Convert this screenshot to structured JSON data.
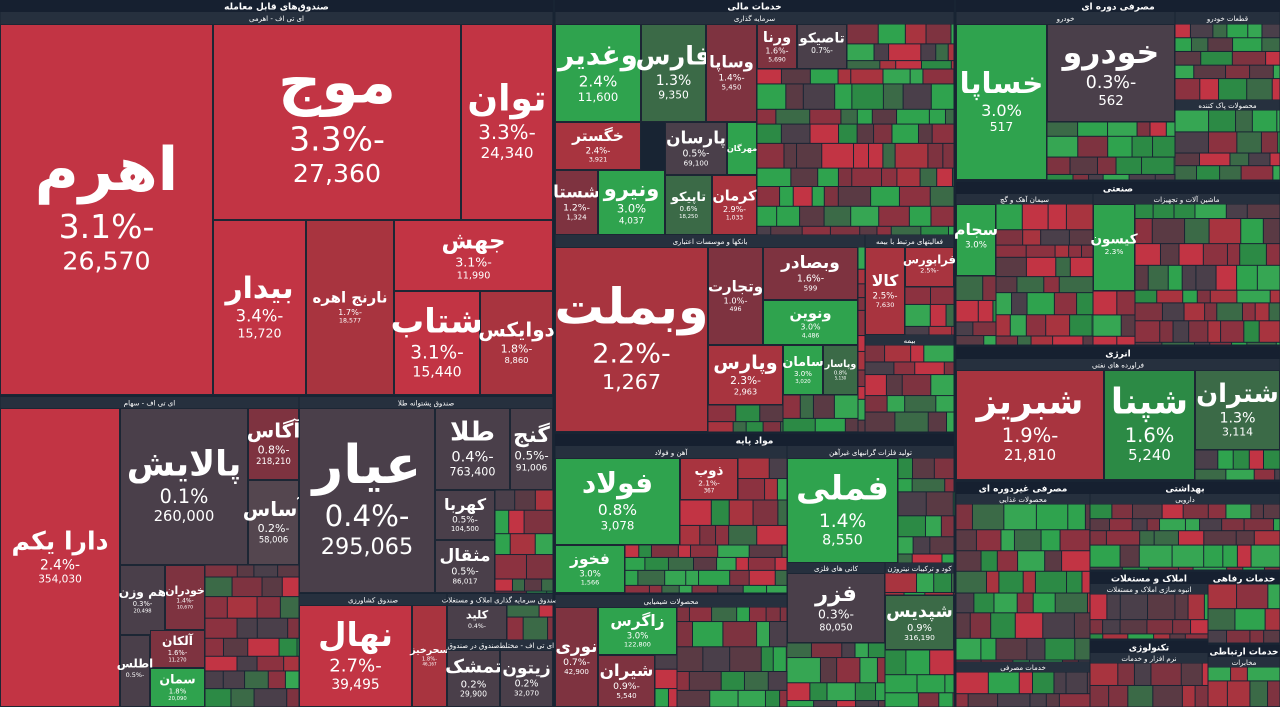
{
  "sections": [
    {
      "title": "صندوق‌های قابل معامله",
      "groups": [
        {
          "title": "ای تی اف - اهرمی",
          "tiles": [
            {
              "name": "اهرم",
              "change": "-3.1%",
              "value": "26,570"
            },
            {
              "name": "موج",
              "change": "-3.3%",
              "value": "27,360"
            },
            {
              "name": "توان",
              "change": "-3.3%",
              "value": "24,340"
            },
            {
              "name": "بیدار",
              "change": "-3.4%",
              "value": "15,720"
            },
            {
              "name": "نارنج اهره",
              "change": "-1.7%",
              "value": "18,577"
            },
            {
              "name": "جهش",
              "change": "-3.1%",
              "value": "11,990"
            },
            {
              "name": "شتاب",
              "change": "-3.1%",
              "value": "15,440"
            },
            {
              "name": "دوایکس",
              "change": "-1.8%",
              "value": "8,860"
            }
          ]
        },
        {
          "title": "ای تی اف - سهام",
          "tiles": [
            {
              "name": "دارا یکم",
              "change": "-2.4%",
              "value": "354,030"
            },
            {
              "name": "پالایش",
              "change": "0.1%",
              "value": "260,000"
            },
            {
              "name": "آگاس",
              "change": "-0.8%",
              "value": "218,210"
            },
            {
              "name": "آساس",
              "change": "-0.2%",
              "value": "58,006"
            },
            {
              "name": "هم وزن",
              "change": "-0.3%",
              "value": "20,498"
            },
            {
              "name": "خودران",
              "change": "-1.4%",
              "value": "10,670"
            },
            {
              "name": "آلکان",
              "change": "-1.6%",
              "value": "11,270"
            },
            {
              "name": "اطلس",
              "change": "-0.5%"
            },
            {
              "name": "سمان",
              "change": "1.8%",
              "value": "20,090"
            }
          ]
        },
        {
          "title": "صندوق پشتوانه طلا",
          "tiles": [
            {
              "name": "عیار",
              "change": "-0.4%",
              "value": "295,065"
            },
            {
              "name": "طلا",
              "change": "-0.4%",
              "value": "763,400"
            },
            {
              "name": "گنج",
              "change": "-0.5%",
              "value": "91,006"
            },
            {
              "name": "کهربا",
              "change": "-0.5%",
              "value": "104,500"
            },
            {
              "name": "مثقال",
              "change": "-0.5%",
              "value": "86,017"
            }
          ]
        },
        {
          "title": "صندوق کشاورزی",
          "tiles": [
            {
              "name": "نهال",
              "change": "-2.7%",
              "value": "39,495"
            },
            {
              "name": "سحرخیز",
              "change": "-1.8%",
              "value": "46,167"
            }
          ]
        },
        {
          "title": "صندوق سرمایه گذاری املاک و مستغلات",
          "tiles": [
            {
              "name": "کلید",
              "change": "-0.4%"
            }
          ]
        },
        {
          "title": "صندوق در صندوق",
          "tiles": [
            {
              "name": "تمشک",
              "change": "0.2%",
              "value": "29,900"
            }
          ]
        },
        {
          "title": "ای تی اف - مختلط",
          "tiles": [
            {
              "name": "زیتون",
              "change": "0.2%",
              "value": "32,070"
            }
          ]
        }
      ]
    },
    {
      "title": "خدمات مالی",
      "groups": [
        {
          "title": "سرمایه گذاری",
          "tiles": [
            {
              "name": "وغدیر",
              "change": "2.4%",
              "value": "11,600"
            },
            {
              "name": "فارس",
              "change": "1.3%",
              "value": "9,350"
            },
            {
              "name": "وساپا",
              "change": "-1.4%",
              "value": "5,450"
            },
            {
              "name": "خگستر",
              "change": "-2.4%",
              "value": "3,921"
            },
            {
              "name": "شستا",
              "change": "-1.2%",
              "value": "1,324"
            },
            {
              "name": "ونیرو",
              "change": "3.0%",
              "value": "4,037"
            },
            {
              "name": "پارسان",
              "change": "-0.5%",
              "value": "69,100"
            },
            {
              "name": "تاپیکو",
              "change": "0.6%",
              "value": "18,250"
            },
            {
              "name": "مهرگان",
              "change": "3.0%"
            },
            {
              "name": "کرمان",
              "change": "-2.9%",
              "value": "1,033"
            },
            {
              "name": "ورنا",
              "change": "-1.6%",
              "value": "5,690"
            },
            {
              "name": "تاصیکو",
              "change": "-0.7%"
            }
          ]
        },
        {
          "title": "بانکها و موسسات اعتباری",
          "tiles": [
            {
              "name": "وبملت",
              "change": "-2.2%",
              "value": "1,267"
            },
            {
              "name": "وتجارت",
              "change": "-1.0%",
              "value": "496"
            },
            {
              "name": "وبصادر",
              "change": "-1.6%",
              "value": "599"
            },
            {
              "name": "ونوین",
              "change": "3.0%",
              "value": "4,486"
            },
            {
              "name": "وپارس",
              "change": "-2.3%",
              "value": "2,963"
            },
            {
              "name": "سامان",
              "change": "3.0%",
              "value": "3,020"
            },
            {
              "name": "وپاسار",
              "change": "0.8%",
              "value": "5,130"
            }
          ]
        },
        {
          "title": "فعالیتهای مرتبط با بیمه",
          "tiles": [
            {
              "name": "کالا",
              "change": "-2.5%",
              "value": "7,630"
            },
            {
              "name": "فرابورس",
              "change": "-2.5%"
            }
          ]
        },
        {
          "title": "بیمه",
          "tiles": []
        }
      ]
    },
    {
      "title": "مصرفی دوره ای",
      "groups": [
        {
          "title": "خودرو",
          "tiles": [
            {
              "name": "خساپا",
              "change": "3.0%",
              "value": "517"
            },
            {
              "name": "خودرو",
              "change": "-0.3%",
              "value": "562"
            }
          ]
        },
        {
          "title": "قطعات خودرو",
          "tiles": []
        },
        {
          "title": "محصولات پاک کننده",
          "tiles": []
        }
      ]
    },
    {
      "title": "صنعتی",
      "groups": [
        {
          "title": "سیمان آهک و گچ",
          "tiles": [
            {
              "name": "سجام",
              "change": "3.0%"
            }
          ]
        },
        {
          "title": "ماشین آلات و تجهیزات",
          "tiles": [
            {
              "name": "کیسون",
              "change": "2.3%"
            }
          ]
        }
      ]
    },
    {
      "title": "انرژی",
      "groups": [
        {
          "title": "فراورده های نفتی",
          "tiles": [
            {
              "name": "شبریز",
              "change": "-1.9%",
              "value": "21,810"
            },
            {
              "name": "شپنا",
              "change": "1.6%",
              "value": "5,240"
            },
            {
              "name": "شتران",
              "change": "1.3%",
              "value": "3,114"
            }
          ]
        }
      ]
    },
    {
      "title": "مواد پایه",
      "groups": [
        {
          "title": "آهن و فولاد",
          "tiles": [
            {
              "name": "فولاد",
              "change": "0.8%",
              "value": "3,078"
            },
            {
              "name": "ذوب",
              "change": "-2.1%",
              "value": "367"
            },
            {
              "name": "فخوز",
              "change": "3.0%",
              "value": "1,566"
            }
          ]
        },
        {
          "title": "تولید فلزات گرانبهای غیرآهن",
          "tiles": [
            {
              "name": "فملی",
              "change": "1.4%",
              "value": "8,550"
            }
          ]
        },
        {
          "title": "محصولات شیمیایی",
          "tiles": [
            {
              "name": "نوری",
              "change": "-0.7%",
              "value": "42,900"
            },
            {
              "name": "زاگرس",
              "change": "3.0%",
              "value": "122,800"
            },
            {
              "name": "شیران",
              "change": "-0.9%",
              "value": "5,540"
            }
          ]
        },
        {
          "title": "کانی های فلزی",
          "tiles": [
            {
              "name": "فزر",
              "change": "-0.3%",
              "value": "80,050"
            }
          ]
        },
        {
          "title": "کود و ترکیبات نیتروژن",
          "tiles": [
            {
              "name": "شپدیس",
              "change": "0.9%",
              "value": "316,190"
            }
          ]
        }
      ]
    },
    {
      "title": "مصرفی غیردوره ای",
      "groups": [
        {
          "title": "محصولات غذایی",
          "tiles": []
        },
        {
          "title": "خدمات مصرفی",
          "tiles": []
        }
      ]
    },
    {
      "title": "بهداشتی",
      "groups": [
        {
          "title": "دارویی",
          "tiles": []
        }
      ]
    },
    {
      "title": "املاک و مستغلات",
      "groups": [
        {
          "title": "انبوه سازی املاک و مستغلات",
          "tiles": []
        }
      ]
    },
    {
      "title": "تکنولوژی",
      "groups": [
        {
          "title": "نرم افزار و خدمات",
          "tiles": []
        }
      ]
    },
    {
      "title": "خدمات رفاهی",
      "groups": [
        {
          "tiles": []
        }
      ]
    },
    {
      "title": "خدمات ارتباطی",
      "groups": [
        {
          "title": "مخابرات",
          "tiles": []
        }
      ]
    }
  ]
}
